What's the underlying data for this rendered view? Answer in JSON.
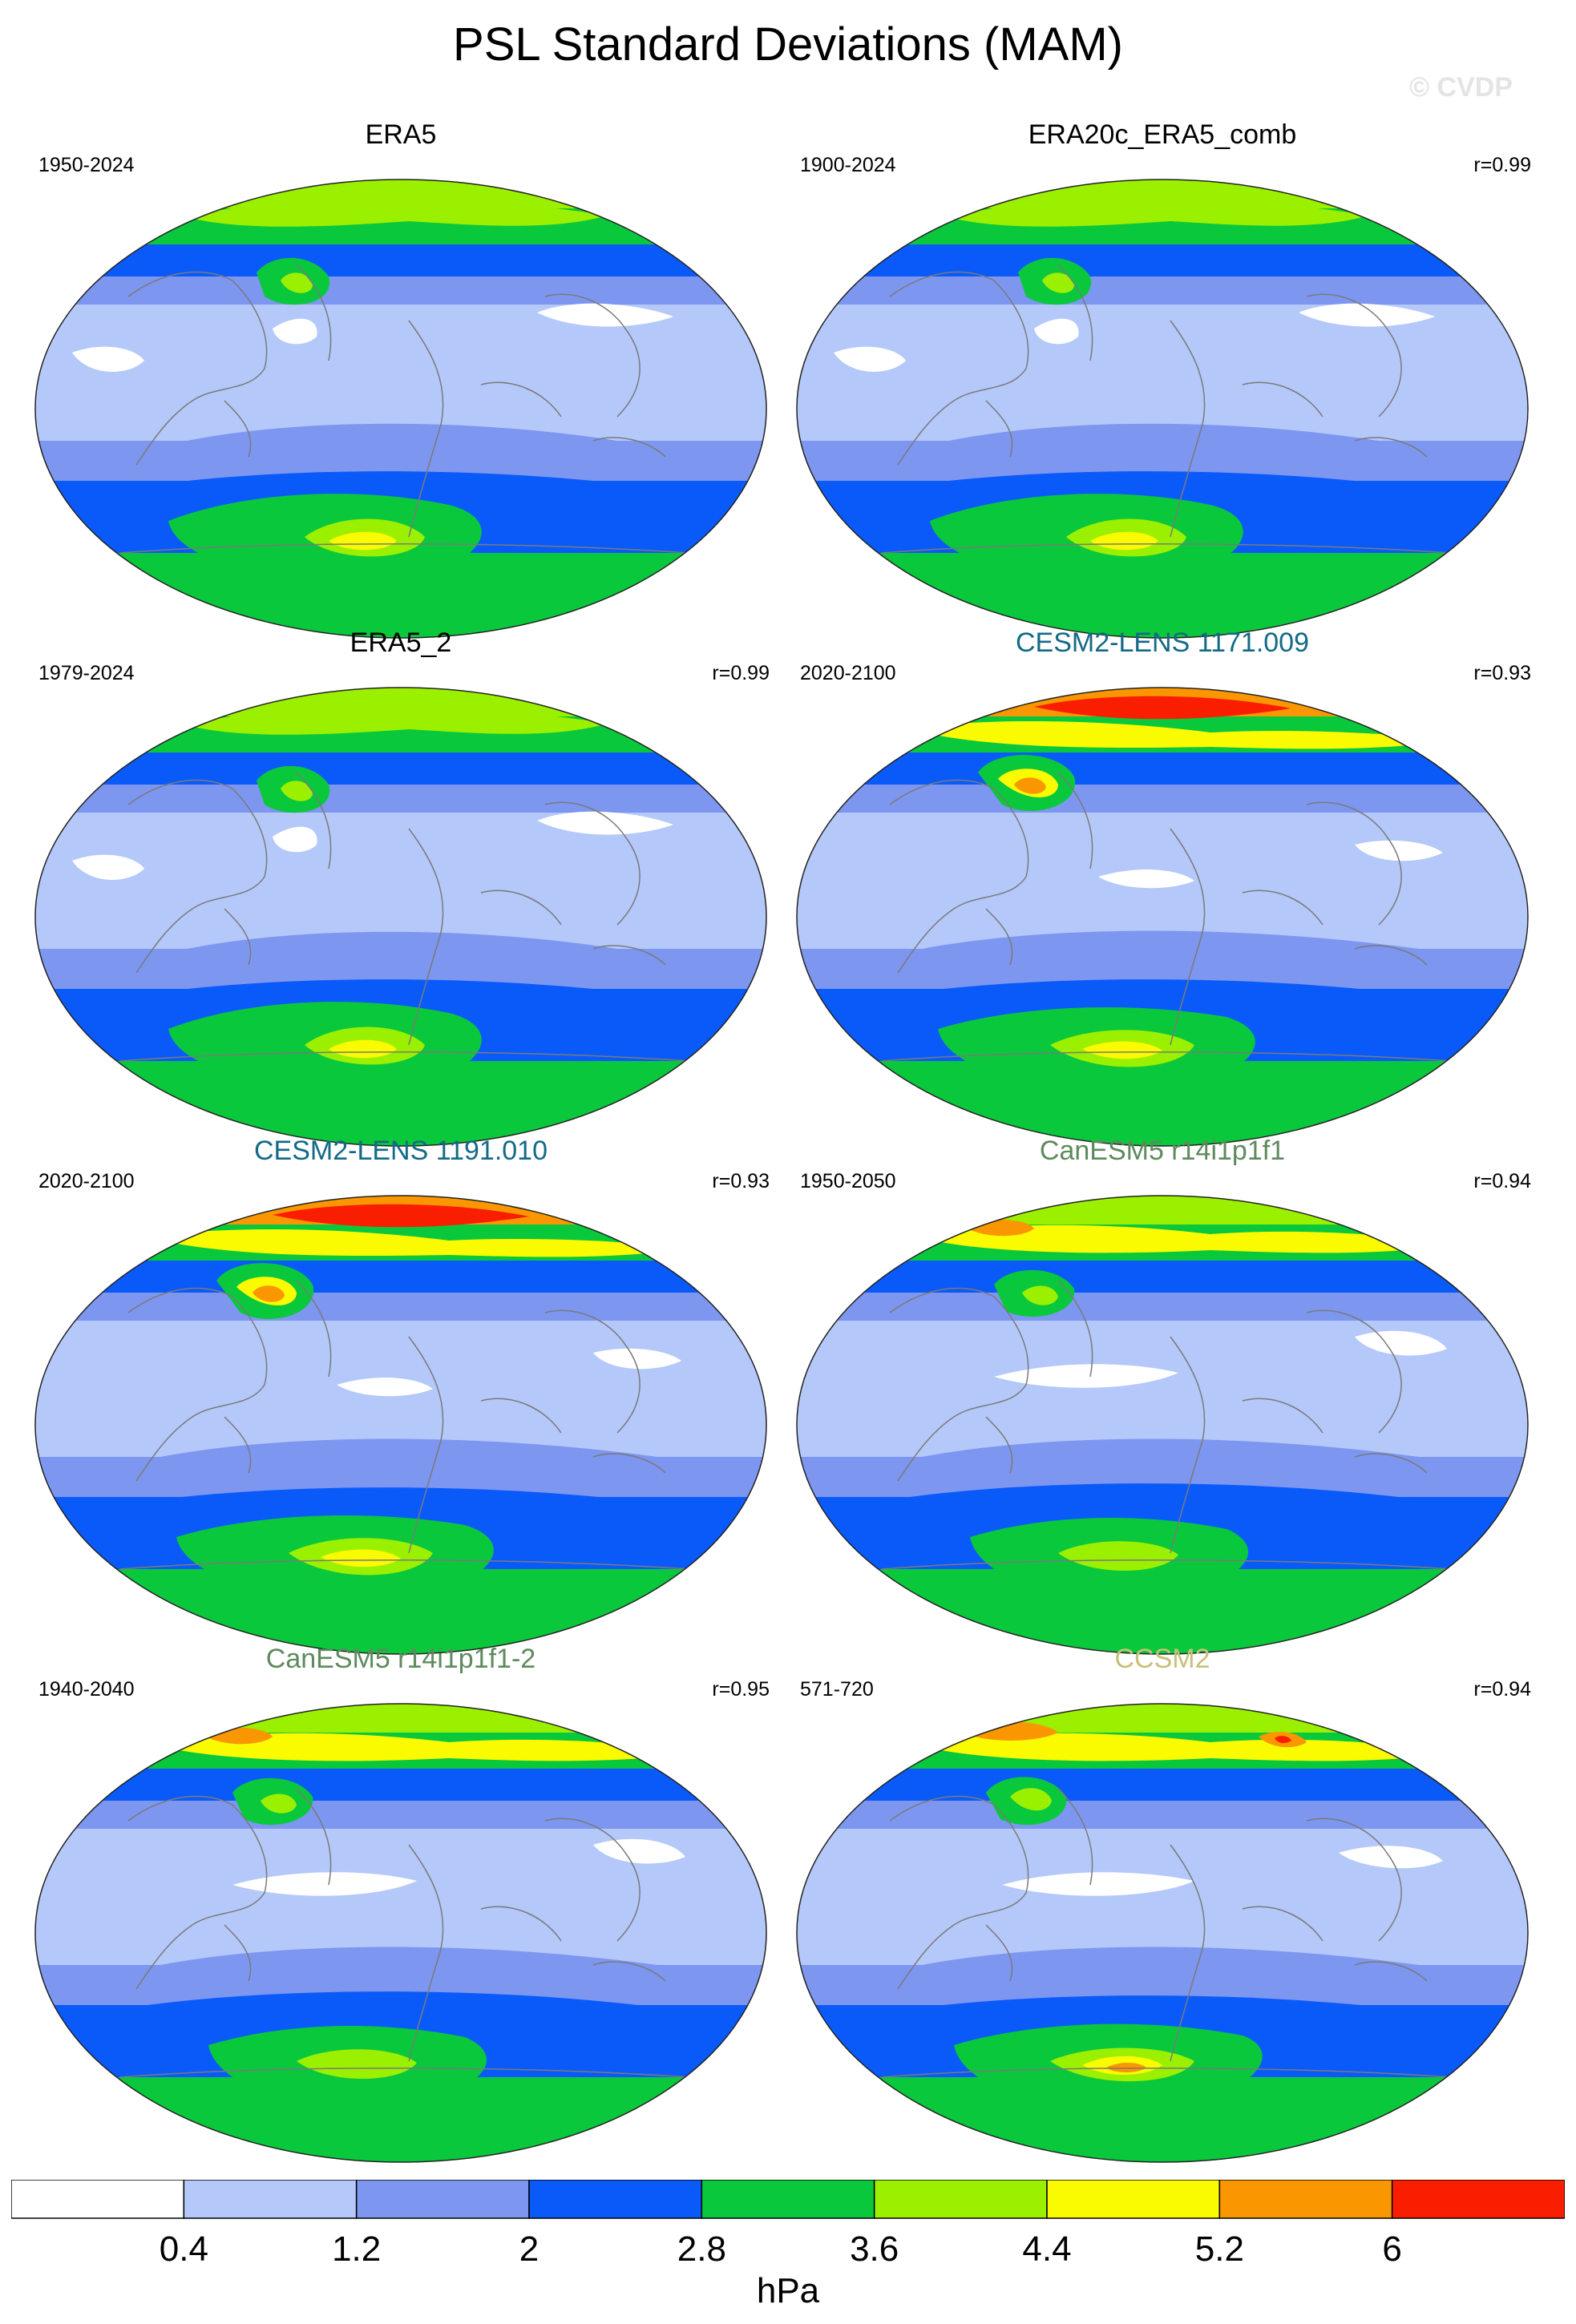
{
  "title": "PSL Standard Deviations (MAM)",
  "watermark": "© CVDP",
  "units": "hPa",
  "colorbar": {
    "ticks": [
      "0.4",
      "1.2",
      "2",
      "2.8",
      "3.6",
      "4.4",
      "5.2",
      "6"
    ],
    "colors": [
      "#ffffff",
      "#b4c8fa",
      "#7d96f0",
      "#0a5afa",
      "#0ac83c",
      "#9bf000",
      "#fafa00",
      "#fa9600",
      "#fa1e00"
    ]
  },
  "panels": [
    {
      "title": "ERA5",
      "title_color": "#000000",
      "period": "1950-2024",
      "corr": "",
      "variant": "obs"
    },
    {
      "title": "ERA20c_ERA5_comb",
      "title_color": "#000000",
      "period": "1900-2024",
      "corr": "r=0.99",
      "variant": "obs"
    },
    {
      "title": "ERA5_2",
      "title_color": "#000000",
      "period": "1979-2024",
      "corr": "r=0.99",
      "variant": "obs"
    },
    {
      "title": "CESM2-LENS 1171.009",
      "title_color": "#136a86",
      "period": "2020-2100",
      "corr": "r=0.93",
      "variant": "cesm"
    },
    {
      "title": "CESM2-LENS 1191.010",
      "title_color": "#136a86",
      "period": "2020-2100",
      "corr": "r=0.93",
      "variant": "cesm"
    },
    {
      "title": "CanESM5 r14i1p1f1",
      "title_color": "#5e8a5e",
      "period": "1950-2050",
      "corr": "r=0.94",
      "variant": "can"
    },
    {
      "title": "CanESM5 r14i1p1f1-2",
      "title_color": "#5e8a5e",
      "period": "1940-2040",
      "corr": "r=0.95",
      "variant": "can"
    },
    {
      "title": "CCSM2",
      "title_color": "#c6c07a",
      "period": "571-720",
      "corr": "r=0.94",
      "variant": "ccsm"
    }
  ]
}
